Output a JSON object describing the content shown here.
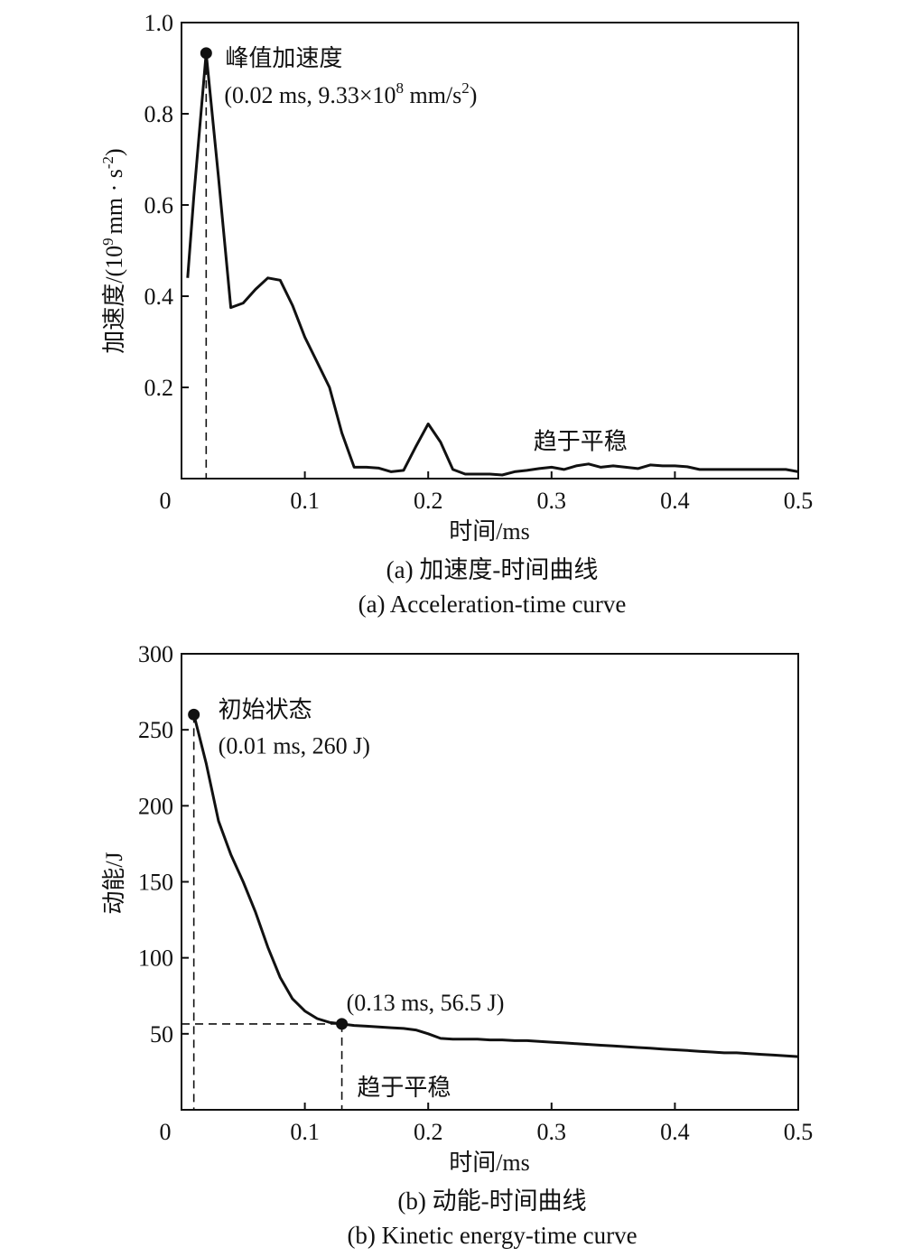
{
  "chart_data": [
    {
      "type": "line",
      "x": [
        0.005,
        0.01,
        0.02,
        0.03,
        0.04,
        0.05,
        0.06,
        0.07,
        0.08,
        0.09,
        0.1,
        0.11,
        0.12,
        0.13,
        0.14,
        0.15,
        0.16,
        0.17,
        0.18,
        0.19,
        0.2,
        0.21,
        0.22,
        0.23,
        0.24,
        0.25,
        0.26,
        0.27,
        0.28,
        0.29,
        0.3,
        0.31,
        0.32,
        0.33,
        0.34,
        0.35,
        0.36,
        0.37,
        0.38,
        0.39,
        0.4,
        0.41,
        0.42,
        0.43,
        0.44,
        0.45,
        0.46,
        0.47,
        0.48,
        0.49,
        0.5
      ],
      "y": [
        0.44,
        0.62,
        0.933,
        0.66,
        0.375,
        0.385,
        0.415,
        0.44,
        0.435,
        0.38,
        0.31,
        0.255,
        0.2,
        0.1,
        0.025,
        0.025,
        0.023,
        0.015,
        0.018,
        0.07,
        0.12,
        0.08,
        0.02,
        0.01,
        0.01,
        0.01,
        0.008,
        0.015,
        0.018,
        0.022,
        0.025,
        0.02,
        0.028,
        0.032,
        0.025,
        0.028,
        0.025,
        0.022,
        0.03,
        0.028,
        0.028,
        0.026,
        0.02,
        0.02,
        0.02,
        0.02,
        0.02,
        0.02,
        0.02,
        0.02,
        0.015
      ],
      "xlim": [
        0,
        0.5
      ],
      "ylim": [
        0,
        1.0
      ],
      "x_ticks": [
        0,
        0.1,
        0.2,
        0.3,
        0.4,
        0.5
      ],
      "x_tick_labels": [
        "0",
        "0.1",
        "0.2",
        "0.3",
        "0.4",
        "0.5"
      ],
      "y_ticks": [
        0.2,
        0.4,
        0.6,
        0.8,
        1.0
      ],
      "y_tick_labels": [
        "0.2",
        "0.4",
        "0.6",
        "0.8",
        "1.0"
      ],
      "xlabel": "时间/ms",
      "ylabel": "加速度/(10",
      "ylabel_exp": "9",
      "ylabel_rest": "mm · s",
      "ylabel_exp2": "-2",
      "ylabel_close": ")",
      "grid": false,
      "annotations": [
        {
          "x": 0.02,
          "y": 0.933,
          "marker": "dot",
          "dashed_drop": true,
          "line1": "峰值加速度",
          "line2_prefix": "(0.02 ms, 9.33×10",
          "line2_sup": "8",
          "line2_mid": " mm/s",
          "line2_sup2": "2",
          "line2_suffix": ")"
        },
        {
          "x": 0.3,
          "y": 0.11,
          "text": "趋于平稳"
        }
      ],
      "caption_cn": "(a) 加速度-时间曲线",
      "caption_en": "(a) Acceleration-time curve"
    },
    {
      "type": "line",
      "x": [
        0.01,
        0.02,
        0.03,
        0.04,
        0.05,
        0.06,
        0.07,
        0.08,
        0.09,
        0.1,
        0.11,
        0.12,
        0.13,
        0.14,
        0.15,
        0.16,
        0.17,
        0.18,
        0.19,
        0.2,
        0.21,
        0.22,
        0.23,
        0.24,
        0.25,
        0.26,
        0.27,
        0.28,
        0.29,
        0.3,
        0.31,
        0.32,
        0.33,
        0.34,
        0.35,
        0.36,
        0.37,
        0.38,
        0.39,
        0.4,
        0.41,
        0.42,
        0.43,
        0.44,
        0.45,
        0.46,
        0.47,
        0.48,
        0.49,
        0.5
      ],
      "y": [
        260,
        228,
        190,
        168,
        150,
        130,
        107,
        87,
        73,
        65,
        60,
        57.5,
        56.5,
        55.5,
        55,
        54.5,
        54,
        53.5,
        52.5,
        50,
        47,
        46.5,
        46.5,
        46.5,
        46,
        46,
        45.5,
        45.5,
        45,
        44.5,
        44,
        43.5,
        43,
        42.5,
        42,
        41.5,
        41,
        40.5,
        40,
        39.5,
        39,
        38.5,
        38,
        37.5,
        37.5,
        37,
        36.5,
        36,
        35.5,
        35
      ],
      "xlim": [
        0,
        0.5
      ],
      "ylim": [
        0,
        300
      ],
      "x_ticks": [
        0,
        0.1,
        0.2,
        0.3,
        0.4,
        0.5
      ],
      "x_tick_labels": [
        "0",
        "0.1",
        "0.2",
        "0.3",
        "0.4",
        "0.5"
      ],
      "y_ticks": [
        50,
        100,
        150,
        200,
        250,
        300
      ],
      "y_tick_labels": [
        "50",
        "100",
        "150",
        "200",
        "250",
        "300"
      ],
      "xlabel": "时间/ms",
      "ylabel": "动能/J",
      "grid": false,
      "annotations": [
        {
          "x": 0.01,
          "y": 260,
          "marker": "dot",
          "dashed_drop": true,
          "line1": "初始状态",
          "line2": "(0.01 ms, 260 J)"
        },
        {
          "x": 0.13,
          "y": 56.5,
          "marker": "dot",
          "dashed_drop": true,
          "dashed_left": true,
          "line1": "(0.13 ms, 56.5 J)"
        },
        {
          "x": 0.135,
          "y": 28,
          "text": "趋于平稳"
        }
      ],
      "caption_cn": "(b) 动能-时间曲线",
      "caption_en": "(b) Kinetic energy-time curve"
    }
  ]
}
